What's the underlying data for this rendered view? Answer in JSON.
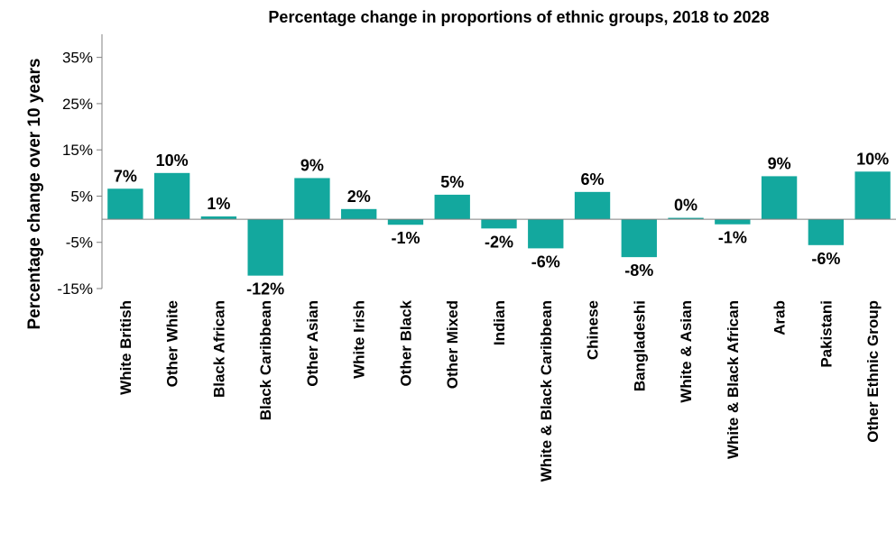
{
  "chart_data": {
    "type": "bar",
    "title": "Percentage change in proportions of ethnic groups, 2018 to 2028",
    "xlabel": "",
    "ylabel": "Percentage change over 10 years",
    "ylim": [
      -15,
      40
    ],
    "yticks": [
      -15,
      -5,
      5,
      15,
      25,
      35
    ],
    "ytick_labels": [
      "-15%",
      "-5%",
      "5%",
      "15%",
      "25%",
      "35%"
    ],
    "grid": false,
    "legend": "none",
    "bar_color": "#13A89E",
    "categories": [
      "White British",
      "Other White",
      "Black African",
      "Black Caribbean",
      "Other Asian",
      "White Irish",
      "Other Black",
      "Other Mixed",
      "Indian",
      "White & Black Caribbean",
      "Chinese",
      "Bangladeshi",
      "White & Asian",
      "White & Black African",
      "Arab",
      "Pakistani",
      "Other Ethnic Group"
    ],
    "values": [
      6.6,
      10.0,
      0.6,
      -12.2,
      8.9,
      2.2,
      -1.2,
      5.3,
      -2.0,
      -6.3,
      5.9,
      -8.2,
      0.3,
      -1.1,
      9.3,
      -5.6,
      10.3
    ],
    "data_labels": [
      "7%",
      "10%",
      "1%",
      "-12%",
      "9%",
      "2%",
      "-1%",
      "5%",
      "-2%",
      "-6%",
      "6%",
      "-8%",
      "0%",
      "-1%",
      "9%",
      "-6%",
      "10%"
    ]
  }
}
